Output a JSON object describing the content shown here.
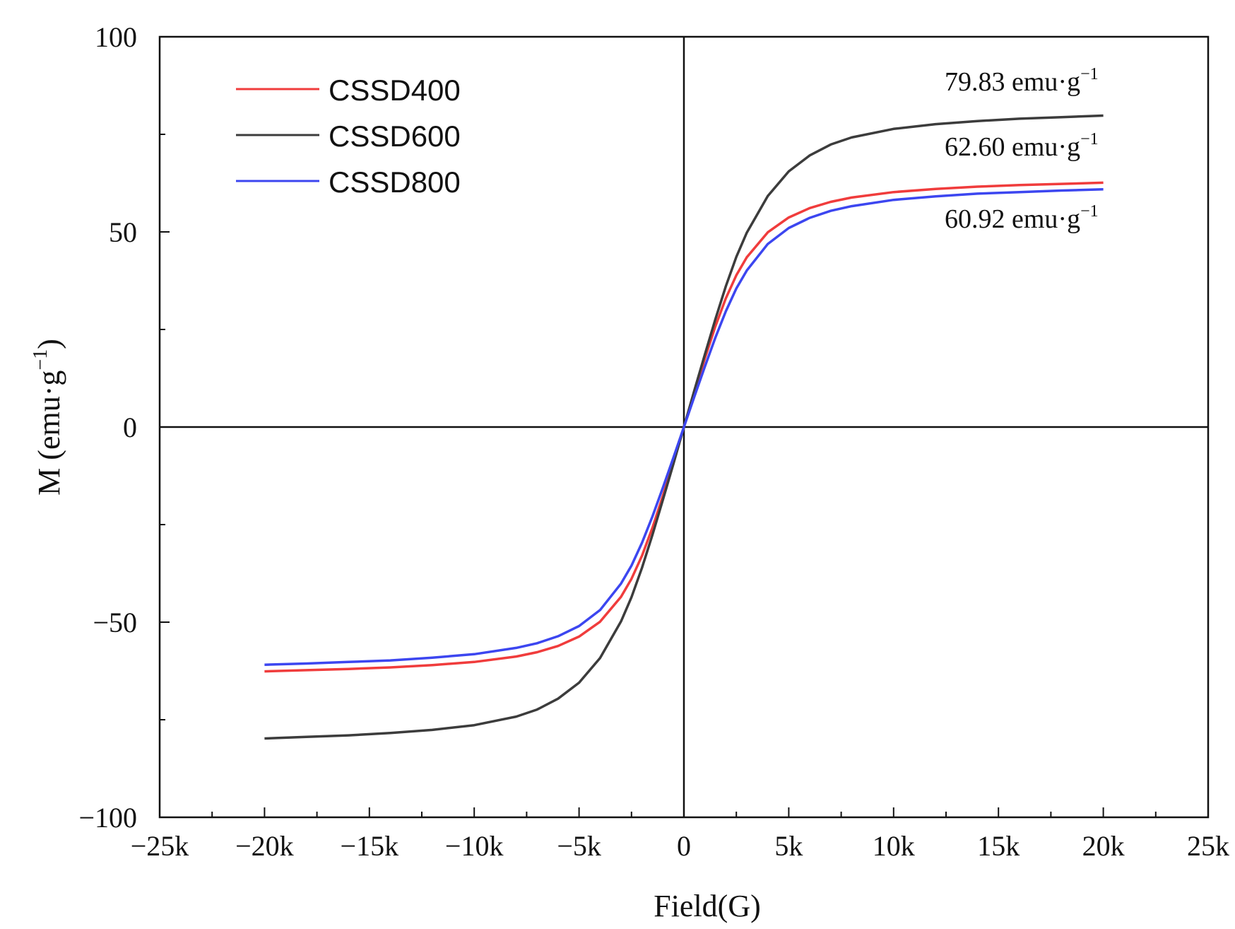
{
  "chart_data": {
    "type": "line",
    "title": "",
    "xlabel": "Field(G)",
    "ylabel": "M (emu·g",
    "ylabel_sup": "−1",
    "ylabel_close": ")",
    "xlim": [
      -25000,
      25000
    ],
    "ylim": [
      -100,
      100
    ],
    "xticks": [
      -25000,
      -20000,
      -15000,
      -10000,
      -5000,
      0,
      5000,
      10000,
      15000,
      20000,
      25000
    ],
    "xtick_labels": [
      "−25k",
      "−20k",
      "−15k",
      "−10k",
      "−5k",
      "0",
      "5k",
      "10k",
      "15k",
      "20k",
      "25k"
    ],
    "yticks": [
      -100,
      -50,
      0,
      50,
      100
    ],
    "ytick_labels": [
      "−100",
      "−50",
      "0",
      "50",
      "100"
    ],
    "x": [
      -20000,
      -18000,
      -16000,
      -14000,
      -12000,
      -10000,
      -8000,
      -7000,
      -6000,
      -5000,
      -4000,
      -3000,
      -2500,
      -2000,
      -1500,
      -1000,
      -500,
      0,
      500,
      1000,
      1500,
      2000,
      2500,
      3000,
      4000,
      5000,
      6000,
      7000,
      8000,
      10000,
      12000,
      14000,
      16000,
      18000,
      20000
    ],
    "series": [
      {
        "name": "CSSD400",
        "color": "#f03c3c",
        "values": [
          -62.6,
          -62.3,
          -62.0,
          -61.6,
          -61.0,
          -60.2,
          -58.8,
          -57.7,
          -56.1,
          -53.7,
          -49.9,
          -43.5,
          -38.9,
          -33.0,
          -25.8,
          -17.6,
          -8.9,
          0,
          8.9,
          17.6,
          25.8,
          33.0,
          38.9,
          43.5,
          49.9,
          53.7,
          56.1,
          57.7,
          58.8,
          60.2,
          61.0,
          61.6,
          62.0,
          62.3,
          62.6
        ]
      },
      {
        "name": "CSSD600",
        "color": "#3c3c3c",
        "values": [
          -79.8,
          -79.4,
          -79.0,
          -78.4,
          -77.6,
          -76.4,
          -74.2,
          -72.4,
          -69.6,
          -65.5,
          -59.2,
          -49.8,
          -43.6,
          -36.1,
          -27.6,
          -18.6,
          -9.4,
          0,
          9.4,
          18.6,
          27.6,
          36.1,
          43.6,
          49.8,
          59.2,
          65.5,
          69.6,
          72.4,
          74.2,
          76.4,
          77.6,
          78.4,
          79.0,
          79.4,
          79.8
        ]
      },
      {
        "name": "CSSD800",
        "color": "#3c46f0",
        "values": [
          -60.9,
          -60.6,
          -60.2,
          -59.8,
          -59.1,
          -58.2,
          -56.6,
          -55.4,
          -53.6,
          -51.0,
          -46.9,
          -40.1,
          -35.5,
          -29.7,
          -22.9,
          -15.5,
          -7.8,
          0,
          7.8,
          15.5,
          22.9,
          29.7,
          35.5,
          40.1,
          46.9,
          51.0,
          53.6,
          55.4,
          56.6,
          58.2,
          59.1,
          59.8,
          60.2,
          60.6,
          60.9
        ]
      }
    ],
    "annotations": [
      {
        "text": "79.83 emu·g",
        "sup": "−1"
      },
      {
        "text": "62.60 emu·g",
        "sup": "−1"
      },
      {
        "text": "60.92 emu·g",
        "sup": "−1"
      }
    ],
    "legend_position": "top-left",
    "grid": false
  }
}
